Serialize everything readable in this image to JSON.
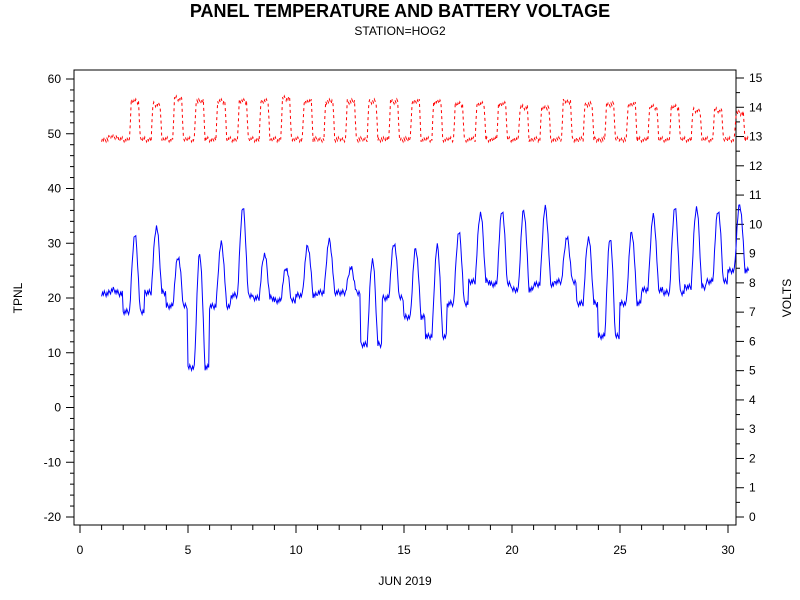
{
  "chart_data": {
    "type": "line",
    "title": "PANEL TEMPERATURE AND BATTERY VOLTAGE",
    "subtitle": "STATION=HOG2",
    "xlabel": "JUN 2019",
    "ylabel_left": "TPNL",
    "ylabel_right": "VOLTS",
    "xlim": [
      0,
      30
    ],
    "ylim_left": [
      -20,
      60
    ],
    "ylim_right": [
      0,
      15
    ],
    "x_ticks": [
      0,
      5,
      10,
      15,
      20,
      25,
      30
    ],
    "y_left_ticks": [
      -20,
      -10,
      0,
      10,
      20,
      30,
      40,
      50,
      60
    ],
    "y_right_ticks": [
      0,
      1,
      2,
      3,
      4,
      5,
      6,
      7,
      8,
      9,
      10,
      11,
      12,
      13,
      14,
      15
    ],
    "grid": false,
    "series": [
      {
        "axis": "left",
        "color": "#0000ff",
        "style": "solid",
        "daily_min": [
          20.8,
          17.5,
          21,
          18.5,
          7.3,
          18.5,
          20.5,
          20,
          19.5,
          20.5,
          21,
          21,
          11.5,
          20,
          16.5,
          13,
          19,
          23,
          22.5,
          21.5,
          22.5,
          23,
          19,
          13,
          19,
          21.5,
          21,
          22,
          23,
          25
        ],
        "daily_max": [
          21.5,
          31.5,
          33,
          27.5,
          28,
          30,
          36.5,
          28,
          25.5,
          29.5,
          30.5,
          25.5,
          27,
          30,
          29,
          29.5,
          32,
          35.5,
          36,
          36,
          36.5,
          31,
          31,
          31,
          32,
          35,
          36.5,
          36.5,
          36,
          37
        ]
      },
      {
        "axis": "right",
        "color": "#ff0000",
        "style": "dashed",
        "daily_min": [
          12.9,
          12.9,
          12.9,
          12.9,
          12.9,
          12.9,
          12.9,
          12.9,
          12.9,
          12.9,
          12.9,
          12.9,
          12.9,
          12.9,
          12.9,
          12.9,
          12.9,
          12.9,
          12.9,
          12.9,
          12.9,
          12.9,
          12.9,
          12.9,
          12.9,
          12.9,
          12.9,
          12.9,
          12.9,
          12.9
        ],
        "daily_max": [
          13.0,
          14.2,
          14.1,
          14.3,
          14.2,
          14.2,
          14.2,
          14.2,
          14.3,
          14.2,
          14.2,
          14.2,
          14.2,
          14.2,
          14.2,
          14.2,
          14.1,
          14.1,
          14.1,
          14.0,
          14.0,
          14.2,
          14.1,
          14.1,
          14.1,
          14.0,
          14.0,
          13.9,
          13.9,
          13.8
        ]
      }
    ]
  }
}
